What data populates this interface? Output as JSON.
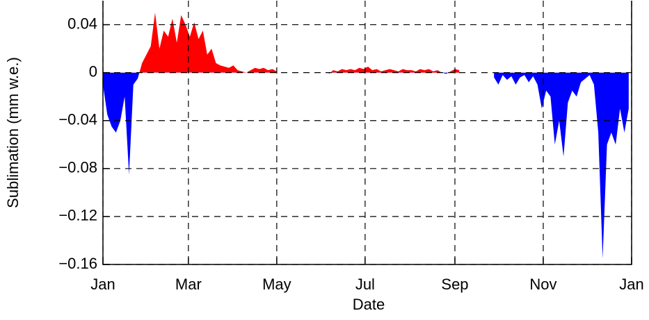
{
  "chart_data": {
    "type": "area",
    "xlabel": "Date",
    "ylabel": "Sublimation (mm w.e.)",
    "positive_color": "#ff0000",
    "negative_color": "#0000ff",
    "grid": true,
    "xlim": [
      0,
      365
    ],
    "ylim": [
      -0.16,
      0.06
    ],
    "xticks": [
      {
        "value": 0,
        "label": "Jan"
      },
      {
        "value": 59,
        "label": "Mar"
      },
      {
        "value": 120,
        "label": "May"
      },
      {
        "value": 181,
        "label": "Jul"
      },
      {
        "value": 243,
        "label": "Sep"
      },
      {
        "value": 304,
        "label": "Nov"
      },
      {
        "value": 365,
        "label": "Jan"
      }
    ],
    "yticks": [
      0.04,
      0,
      {
        "value": -0.04,
        "label": "−0.04"
      },
      {
        "value": -0.08,
        "label": "−0.08"
      },
      {
        "value": -0.12,
        "label": "−0.12"
      },
      {
        "value": -0.16,
        "label": "−0.16"
      }
    ],
    "x": [
      0,
      3,
      6,
      9,
      12,
      15,
      18,
      21,
      24,
      27,
      30,
      33,
      36,
      39,
      42,
      45,
      48,
      51,
      54,
      57,
      60,
      63,
      66,
      69,
      72,
      75,
      78,
      81,
      84,
      87,
      90,
      93,
      96,
      99,
      102,
      105,
      108,
      111,
      114,
      117,
      120,
      123,
      126,
      129,
      132,
      135,
      138,
      141,
      144,
      147,
      150,
      153,
      156,
      159,
      162,
      165,
      168,
      171,
      174,
      177,
      180,
      183,
      186,
      189,
      192,
      195,
      198,
      201,
      204,
      207,
      210,
      213,
      216,
      219,
      222,
      225,
      228,
      231,
      234,
      237,
      240,
      243,
      246,
      249,
      252,
      255,
      258,
      261,
      264,
      267,
      270,
      273,
      276,
      279,
      282,
      285,
      288,
      291,
      294,
      297,
      300,
      303,
      306,
      309,
      312,
      315,
      318,
      321,
      324,
      327,
      330,
      333,
      336,
      339,
      342,
      345,
      348,
      351,
      354,
      357,
      360,
      363
    ],
    "values": [
      -0.01,
      -0.035,
      -0.045,
      -0.05,
      -0.04,
      -0.02,
      -0.085,
      -0.01,
      -0.005,
      0.008,
      0.015,
      0.022,
      0.05,
      0.02,
      0.035,
      0.03,
      0.045,
      0.025,
      0.048,
      0.04,
      0.03,
      0.042,
      0.028,
      0.035,
      0.015,
      0.02,
      0.008,
      0.006,
      0.005,
      0.004,
      0.006,
      0.002,
      0.001,
      0,
      0.002,
      0.004,
      0.003,
      0.004,
      0.002,
      0.003,
      0.001,
      null,
      null,
      null,
      null,
      null,
      null,
      null,
      null,
      null,
      null,
      null,
      -0.001,
      0.002,
      0.001,
      0.003,
      0.002,
      0.003,
      0.002,
      0.004,
      0.003,
      0.005,
      0.002,
      0.003,
      0.001,
      0.002,
      0.003,
      0.002,
      0.001,
      0.003,
      0.002,
      0.002,
      0.001,
      0.003,
      0.002,
      0.003,
      0.001,
      0.002,
      0,
      -0.001,
      0.001,
      0.003,
      0.002,
      null,
      null,
      null,
      null,
      null,
      null,
      null,
      -0.004,
      -0.01,
      -0.002,
      -0.006,
      -0.003,
      -0.01,
      -0.004,
      -0.002,
      -0.008,
      -0.003,
      -0.01,
      -0.03,
      -0.015,
      -0.02,
      -0.06,
      -0.04,
      -0.07,
      -0.025,
      -0.015,
      -0.02,
      -0.008,
      -0.005,
      -0.002,
      -0.01,
      -0.05,
      -0.155,
      -0.06,
      -0.05,
      -0.06,
      -0.03,
      -0.05,
      -0.03
    ]
  }
}
